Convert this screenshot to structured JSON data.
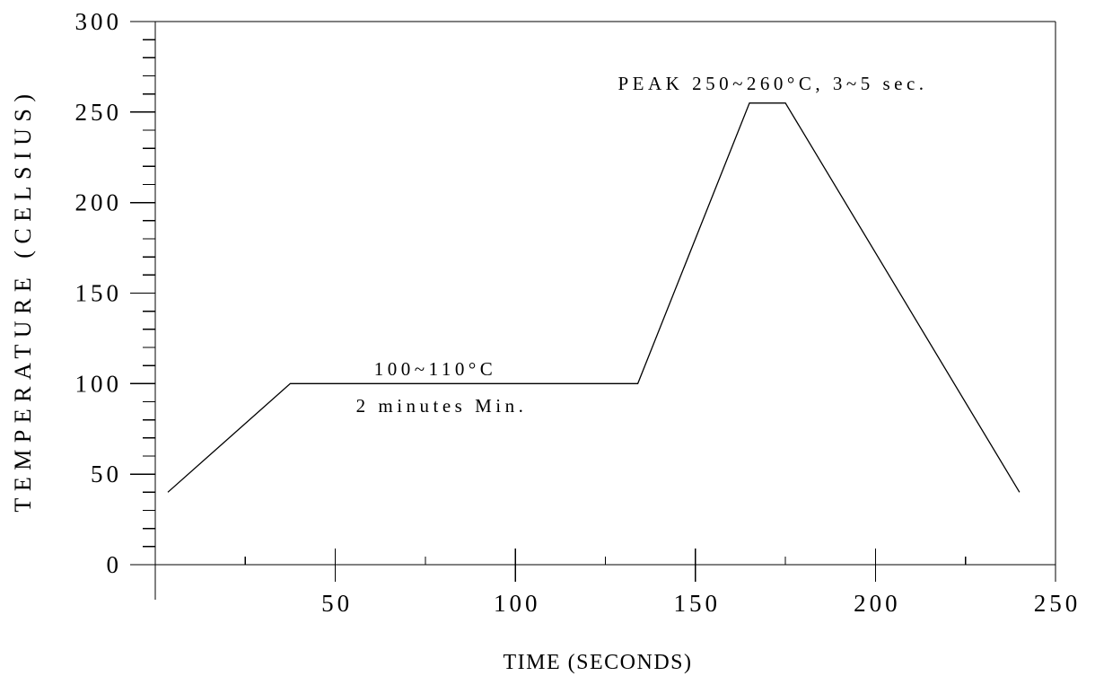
{
  "chart_data": {
    "type": "line",
    "xlabel": "TIME (SECONDS)",
    "ylabel": "TEMPERATURE (CELSIUS)",
    "xlim": [
      0,
      250
    ],
    "ylim": [
      0,
      300
    ],
    "x_ticks": [
      50,
      100,
      150,
      200,
      250
    ],
    "y_ticks": [
      0,
      50,
      100,
      150,
      200,
      250,
      300
    ],
    "x_minor_tick_step": 25,
    "y_minor_tick_step": 10,
    "grid": false,
    "line_color": "#000000",
    "series": [
      {
        "x": [
          3.5,
          37.5,
          134,
          165,
          175,
          240
        ],
        "y": [
          40,
          100,
          100,
          255,
          255,
          40
        ]
      }
    ],
    "annotations": {
      "peak": "PEAK 250~260°C, 3~5 sec.",
      "soak_temperature": "100~110°C",
      "soak_time": "2 minutes Min."
    }
  }
}
